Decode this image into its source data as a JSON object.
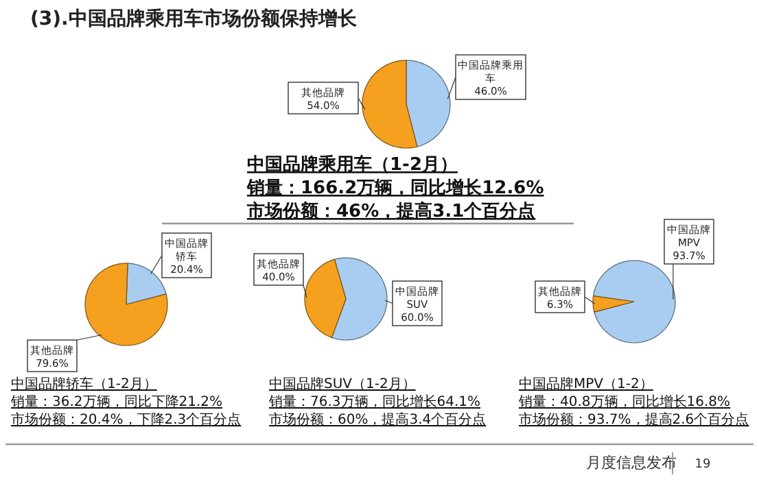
{
  "chart_data": [
    {
      "type": "pie",
      "title": "(3).中国品牌乘用车市场份额保持增长",
      "categories": [
        "中国品牌乘用车",
        "其他品牌"
      ],
      "values": [
        46.0,
        54.0
      ],
      "value_labels": [
        "46.0%",
        "54.0%"
      ],
      "colors": [
        "#a9cdf0",
        "#f5a01f"
      ],
      "annotations": [
        "中国品牌乘用车（1-2月）",
        "销量：166.2万辆，同比增长12.6%",
        "市场份额：46%，提高3.1个百分点"
      ]
    },
    {
      "type": "pie",
      "categories": [
        "中国品牌轿车",
        "其他品牌"
      ],
      "values": [
        20.4,
        79.6
      ],
      "value_labels": [
        "20.4%",
        "79.6%"
      ],
      "colors": [
        "#a9cdf0",
        "#f5a01f"
      ],
      "annotations": [
        "中国品牌轿车（1-2月）",
        "销量：36.2万辆，同比下降21.2%",
        "市场份额：20.4%，下降2.3个百分点"
      ]
    },
    {
      "type": "pie",
      "categories": [
        "中国品牌SUV",
        "其他品牌"
      ],
      "values": [
        60.0,
        40.0
      ],
      "value_labels": [
        "60.0%",
        "40.0%"
      ],
      "colors": [
        "#a9cdf0",
        "#f5a01f"
      ],
      "annotations": [
        "中国品牌SUV（1-2月）",
        "销量：76.3万辆，同比增长64.1%",
        "市场份额：60%，提高3.4个百分点"
      ]
    },
    {
      "type": "pie",
      "categories": [
        "中国品牌MPV",
        "其他品牌"
      ],
      "values": [
        93.7,
        6.3
      ],
      "value_labels": [
        "93.7%",
        "6.3%"
      ],
      "colors": [
        "#a9cdf0",
        "#f5a01f"
      ],
      "annotations": [
        "中国品牌MPV（1-2）",
        "销量：40.8万辆，同比增长16.8%",
        "市场份额：93.7%，提高2.6个百分点",
        "月度信息发布",
        "19"
      ]
    }
  ]
}
